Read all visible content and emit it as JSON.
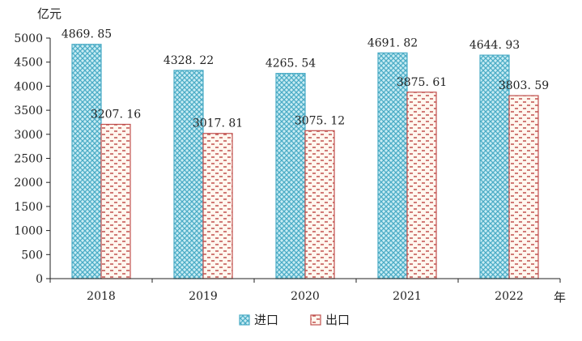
{
  "chart_data": {
    "type": "bar",
    "categories": [
      "2018",
      "2019",
      "2020",
      "2021",
      "2022"
    ],
    "series": [
      {
        "name": "进口",
        "values": [
          4869.85,
          4328.22,
          4265.54,
          4691.82,
          4644.93
        ],
        "color": "#4bacc6"
      },
      {
        "name": "出口",
        "values": [
          3207.16,
          3017.81,
          3075.12,
          3875.61,
          3803.59
        ],
        "color": "#c0504d"
      }
    ],
    "value_labels": {
      "进口": [
        "4869. 85",
        "4328. 22",
        "4265. 54",
        "4691. 82",
        "4644. 93"
      ],
      "出口": [
        "3207. 16",
        "3017. 81",
        "3075. 12",
        "3875. 61",
        "3803. 59"
      ]
    },
    "ylabel": "亿元",
    "xlabel": "年",
    "ylim": [
      0,
      5000
    ],
    "yticks": [
      0,
      500,
      1000,
      1500,
      2000,
      2500,
      3000,
      3500,
      4000,
      4500,
      5000
    ],
    "grid": false,
    "legend": "bottom"
  }
}
